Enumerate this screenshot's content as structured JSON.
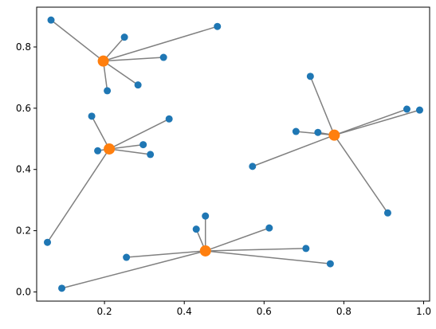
{
  "chart_data": {
    "type": "scatter",
    "title": "",
    "xlabel": "",
    "ylabel": "",
    "xlim": [
      0.03,
      1.015
    ],
    "ylim": [
      -0.03,
      0.93
    ],
    "xticks": [
      0.2,
      0.4,
      0.6,
      0.8,
      1.0
    ],
    "xtick_labels": [
      "0.2",
      "0.4",
      "0.6",
      "0.8",
      "1.0"
    ],
    "yticks": [
      0.0,
      0.2,
      0.4,
      0.6,
      0.8
    ],
    "ytick_labels": [
      "0.0",
      "0.2",
      "0.4",
      "0.6",
      "0.8"
    ],
    "grid": false,
    "legend": false,
    "colors": {
      "points": "#1f77b4",
      "centers": "#ff7f0e",
      "lines": "#808080",
      "axes": "#000000"
    },
    "clusters": [
      {
        "center": [
          0.197,
          0.754
        ],
        "points": [
          [
            0.066,
            0.888
          ],
          [
            0.25,
            0.832
          ],
          [
            0.483,
            0.867
          ],
          [
            0.348,
            0.766
          ],
          [
            0.284,
            0.676
          ],
          [
            0.207,
            0.657
          ]
        ]
      },
      {
        "center": [
          0.212,
          0.467
        ],
        "points": [
          [
            0.168,
            0.574
          ],
          [
            0.362,
            0.565
          ],
          [
            0.183,
            0.461
          ],
          [
            0.297,
            0.481
          ],
          [
            0.315,
            0.449
          ],
          [
            0.057,
            0.162
          ]
        ]
      },
      {
        "center": [
          0.776,
          0.512
        ],
        "points": [
          [
            0.716,
            0.704
          ],
          [
            0.958,
            0.597
          ],
          [
            0.99,
            0.594
          ],
          [
            0.68,
            0.524
          ],
          [
            0.735,
            0.521
          ],
          [
            0.571,
            0.41
          ],
          [
            0.91,
            0.258
          ]
        ]
      },
      {
        "center": [
          0.453,
          0.134
        ],
        "points": [
          [
            0.453,
            0.248
          ],
          [
            0.43,
            0.205
          ],
          [
            0.613,
            0.209
          ],
          [
            0.255,
            0.113
          ],
          [
            0.705,
            0.142
          ],
          [
            0.766,
            0.092
          ],
          [
            0.093,
            0.012
          ]
        ]
      }
    ]
  }
}
